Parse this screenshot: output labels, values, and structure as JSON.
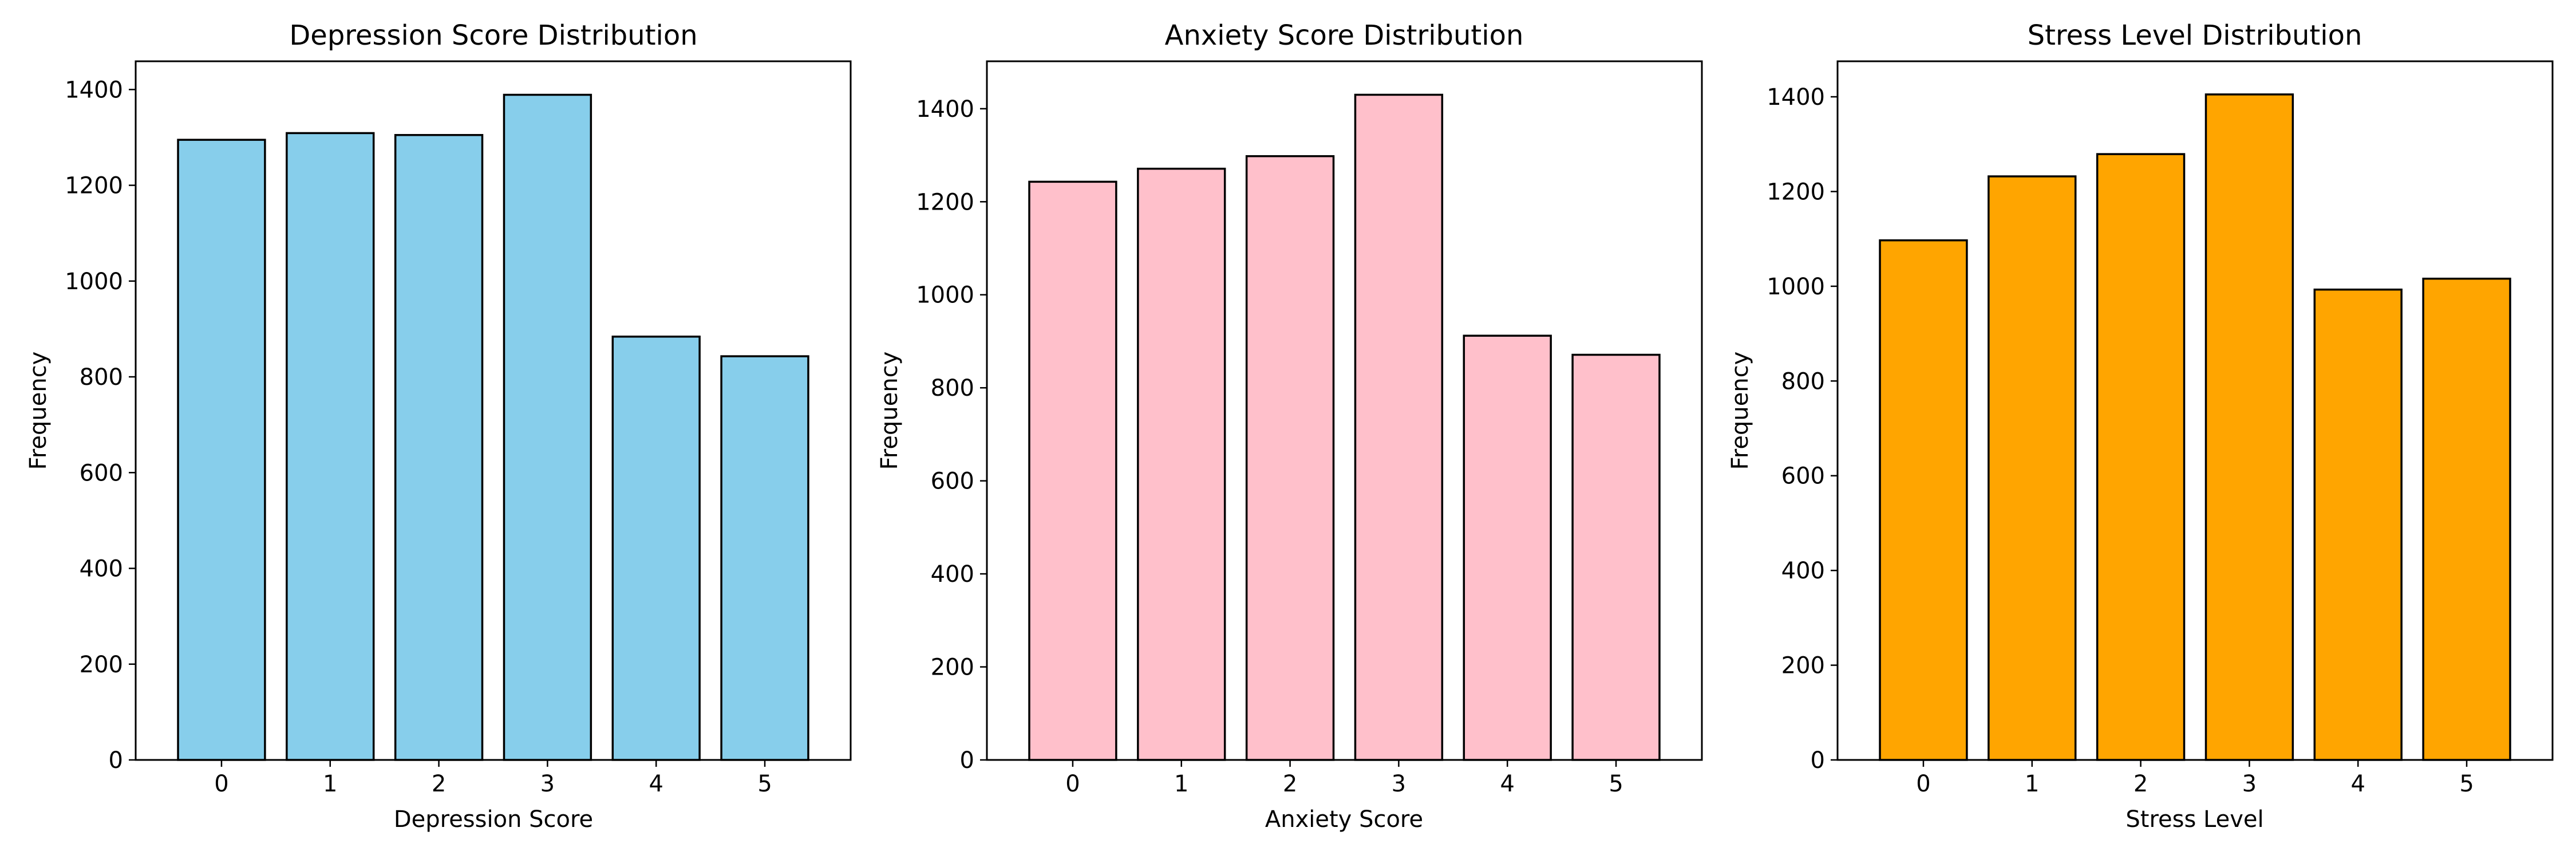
{
  "chart_data": [
    {
      "type": "bar",
      "title": "Depression Score Distribution",
      "xlabel": "Depression Score",
      "ylabel": "Frequency",
      "categories": [
        "0",
        "1",
        "2",
        "3",
        "4",
        "5"
      ],
      "values": [
        1295,
        1309,
        1305,
        1389,
        884,
        843
      ],
      "ylim": [
        0,
        1459
      ],
      "yticks": [
        0,
        200,
        400,
        600,
        800,
        1000,
        1200,
        1400
      ],
      "bar_color": "#87ceeb",
      "edge_color": "#000000"
    },
    {
      "type": "bar",
      "title": "Anxiety Score Distribution",
      "xlabel": "Anxiety Score",
      "ylabel": "Frequency",
      "categories": [
        "0",
        "1",
        "2",
        "3",
        "4",
        "5"
      ],
      "values": [
        1243,
        1271,
        1298,
        1430,
        912,
        871
      ],
      "ylim": [
        0,
        1502
      ],
      "yticks": [
        0,
        200,
        400,
        600,
        800,
        1000,
        1200,
        1400
      ],
      "bar_color": "#ffc0cb",
      "edge_color": "#000000"
    },
    {
      "type": "bar",
      "title": "Stress Level Distribution",
      "xlabel": "Stress Level",
      "ylabel": "Frequency",
      "categories": [
        "0",
        "1",
        "2",
        "3",
        "4",
        "5"
      ],
      "values": [
        1097,
        1232,
        1279,
        1405,
        993,
        1016
      ],
      "ylim": [
        0,
        1475
      ],
      "yticks": [
        0,
        200,
        400,
        600,
        800,
        1000,
        1200,
        1400
      ],
      "bar_color": "#ffa500",
      "edge_color": "#000000"
    }
  ]
}
